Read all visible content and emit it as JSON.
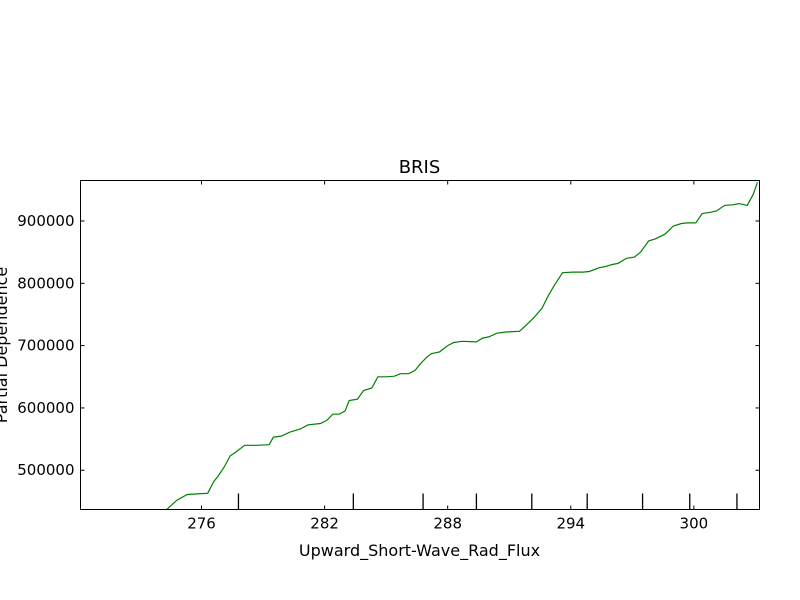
{
  "chart_data": {
    "type": "line",
    "title": "BRIS",
    "xlabel": "Upward_Short-Wave_Rad_Flux",
    "ylabel": "Partial Dependence",
    "xlim": [
      270.1,
      303.2
    ],
    "ylim": [
      437000,
      965000
    ],
    "x_ticks": [
      276,
      282,
      288,
      294,
      300
    ],
    "x_tick_labels": [
      "276",
      "282",
      "288",
      "294",
      "300"
    ],
    "y_ticks": [
      500000,
      600000,
      700000,
      800000,
      900000
    ],
    "y_tick_labels": [
      "500000",
      "600000",
      "700000",
      "800000",
      "900000"
    ],
    "rug_x": [
      277.8,
      283.4,
      286.8,
      289.4,
      292.1,
      294.8,
      297.5,
      299.8,
      302.1
    ],
    "grid": false,
    "series": [
      {
        "color": "#008000",
        "x": [
          274.3,
          274.8,
          275.3,
          275.8,
          276.3,
          276.6,
          276.8,
          277.1,
          277.4,
          277.7,
          278.1,
          278.7,
          279.3,
          279.5,
          279.9,
          280.3,
          280.8,
          281.2,
          281.8,
          282.1,
          282.4,
          282.7,
          283.0,
          283.2,
          283.6,
          283.9,
          284.3,
          284.6,
          285.0,
          285.4,
          285.7,
          286.1,
          286.4,
          286.7,
          287.0,
          287.2,
          287.6,
          288.0,
          288.3,
          288.7,
          289.4,
          289.7,
          290.0,
          290.4,
          290.9,
          291.5,
          291.8,
          292.2,
          292.6,
          292.9,
          293.2,
          293.6,
          294.1,
          294.6,
          294.9,
          295.4,
          295.7,
          296.0,
          296.3,
          296.7,
          297.1,
          297.4,
          297.8,
          298.1,
          298.6,
          299.0,
          299.4,
          299.7,
          300.1,
          300.4,
          300.8,
          301.1,
          301.5,
          301.9,
          302.2,
          302.6,
          302.9,
          303.1
        ],
        "values": [
          437000,
          452000,
          461000,
          462000,
          463000,
          482000,
          490000,
          505000,
          523000,
          530000,
          540000,
          540000,
          541000,
          553000,
          555000,
          561000,
          566000,
          573000,
          575000,
          580000,
          590000,
          590000,
          595000,
          612000,
          614000,
          628000,
          632000,
          650000,
          650000,
          651000,
          655000,
          655000,
          660000,
          672000,
          682000,
          687000,
          690000,
          700000,
          705000,
          707000,
          706000,
          712000,
          714000,
          720000,
          722000,
          723000,
          732000,
          745000,
          760000,
          780000,
          797000,
          817000,
          818000,
          818000,
          819000,
          825000,
          827000,
          830000,
          832000,
          840000,
          842000,
          850000,
          868000,
          871000,
          879000,
          892000,
          896000,
          897000,
          897000,
          912000,
          914000,
          916000,
          925000,
          926000,
          928000,
          925000,
          943000,
          962000
        ]
      }
    ]
  }
}
